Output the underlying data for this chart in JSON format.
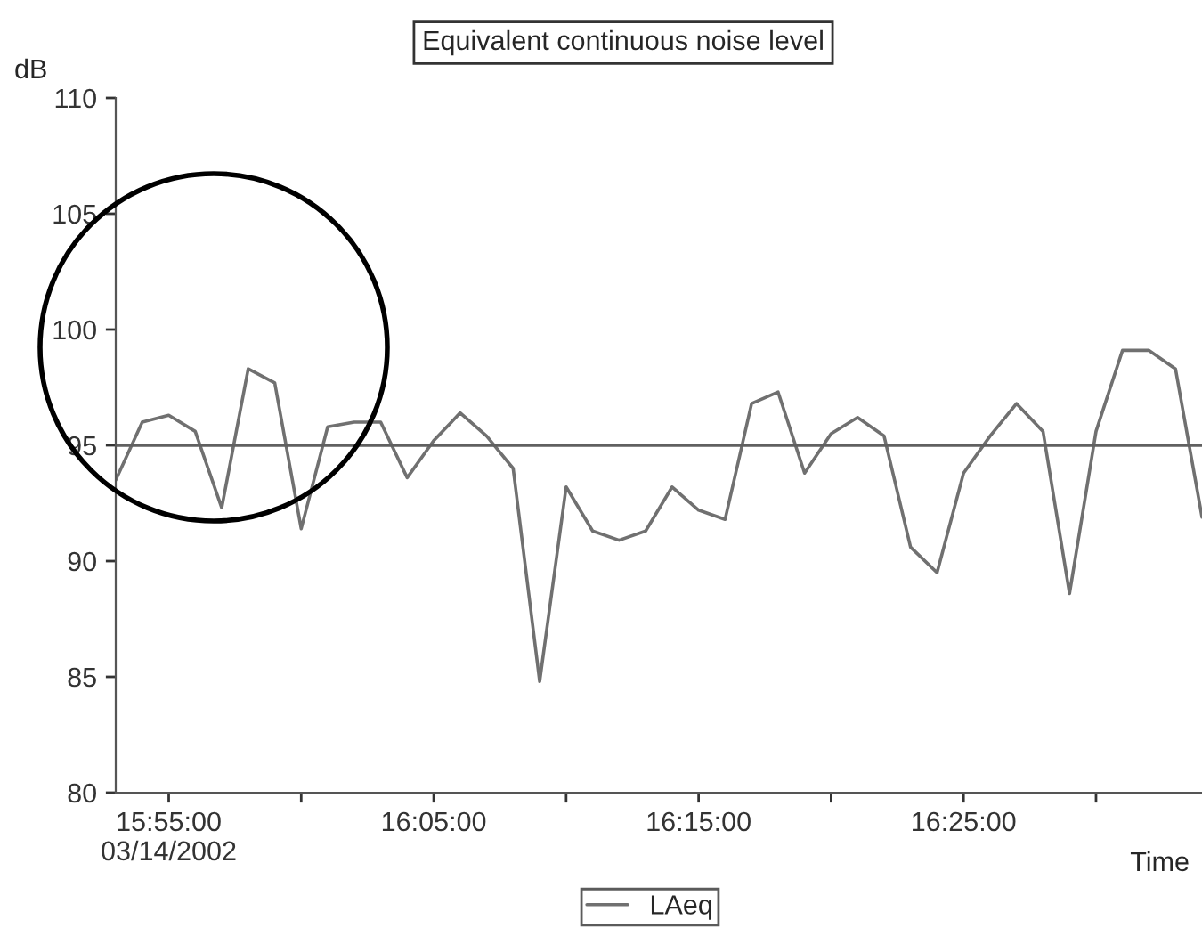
{
  "chart_data": {
    "type": "line",
    "title": "Equivalent continuous noise level",
    "xlabel": "Time",
    "ylabel": "dB",
    "x": [
      "2002-03-14T15:53",
      "2002-03-14T15:54",
      "2002-03-14T15:55",
      "2002-03-14T15:56",
      "2002-03-14T15:57",
      "2002-03-14T15:58",
      "2002-03-14T15:59",
      "2002-03-14T16:00",
      "2002-03-14T16:01",
      "2002-03-14T16:02",
      "2002-03-14T16:03",
      "2002-03-14T16:04",
      "2002-03-14T16:05",
      "2002-03-14T16:06",
      "2002-03-14T16:07",
      "2002-03-14T16:08",
      "2002-03-14T16:09",
      "2002-03-14T16:10",
      "2002-03-14T16:11",
      "2002-03-14T16:12",
      "2002-03-14T16:13",
      "2002-03-14T16:14",
      "2002-03-14T16:15",
      "2002-03-14T16:16",
      "2002-03-14T16:17",
      "2002-03-14T16:18",
      "2002-03-14T16:19",
      "2002-03-14T16:20",
      "2002-03-14T16:21",
      "2002-03-14T16:22",
      "2002-03-14T16:23",
      "2002-03-14T16:24",
      "2002-03-14T16:25",
      "2002-03-14T16:26",
      "2002-03-14T16:27",
      "2002-03-14T16:28",
      "2002-03-14T16:29",
      "2002-03-14T16:30",
      "2002-03-14T16:31",
      "2002-03-14T16:32",
      "2002-03-14T16:33",
      "2002-03-14T16:34"
    ],
    "series": [
      {
        "name": "LAeq",
        "color": "#707070",
        "values": [
          93.5,
          96.0,
          96.3,
          95.6,
          92.3,
          98.3,
          97.7,
          91.4,
          95.8,
          96.0,
          96.0,
          93.6,
          95.2,
          96.4,
          95.4,
          94.0,
          84.8,
          93.2,
          91.3,
          90.9,
          91.3,
          93.2,
          92.2,
          91.8,
          96.8,
          97.3,
          93.8,
          95.5,
          96.2,
          95.4,
          90.6,
          89.5,
          93.8,
          95.4,
          96.8,
          95.6,
          88.6,
          95.6,
          99.1,
          99.1,
          98.3,
          91.9
        ]
      }
    ],
    "xlim": [
      "2002-03-14T15:53",
      "2002-03-14T16:34"
    ],
    "xticks": [
      {
        "value": "2002-03-14T15:55",
        "label": "15:55:00\n03/14/2002"
      },
      {
        "value": "2002-03-14T16:00",
        "label": null
      },
      {
        "value": "2002-03-14T16:05",
        "label": "16:05:00"
      },
      {
        "value": "2002-03-14T16:10",
        "label": null
      },
      {
        "value": "2002-03-14T16:15",
        "label": "16:15:00"
      },
      {
        "value": "2002-03-14T16:20",
        "label": null
      },
      {
        "value": "2002-03-14T16:25",
        "label": "16:25:00"
      },
      {
        "value": "2002-03-14T16:30",
        "label": null
      }
    ],
    "ylim": [
      80,
      110
    ],
    "yticks": [
      80,
      85,
      90,
      95,
      100,
      105,
      110
    ],
    "ref_lines": [
      {
        "axis": "y",
        "value": 95,
        "color": "#606060"
      }
    ],
    "grid": false,
    "legend": "bottom",
    "marker": "none",
    "line_style": "solid"
  }
}
